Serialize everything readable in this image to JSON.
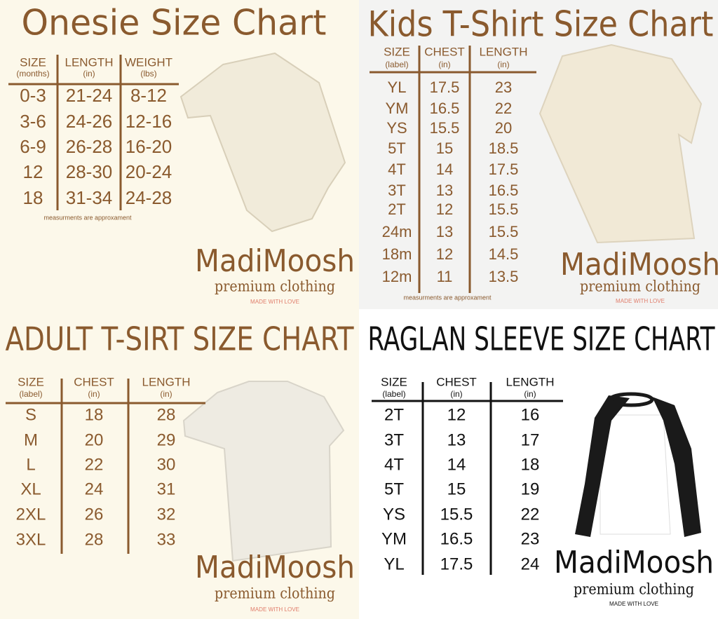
{
  "panels": [
    {
      "title": "Onesie Size Chart",
      "columns": [
        {
          "label": "SIZE",
          "unit": "(months)"
        },
        {
          "label": "LENGTH",
          "unit": "(in)"
        },
        {
          "label": "WEIGHT",
          "unit": "(lbs)"
        }
      ],
      "rows": [
        [
          "0-3",
          "21-24",
          "8-12"
        ],
        [
          "3-6",
          "24-26",
          "12-16"
        ],
        [
          "6-9",
          "26-28",
          "16-20"
        ],
        [
          "12",
          "28-30",
          "20-24"
        ],
        [
          "18",
          "31-34",
          "24-28"
        ]
      ],
      "note": "measurments are approxament",
      "brand": {
        "name": "MadiMoosh",
        "tagline": "premium clothing",
        "motto": "MADE WITH LOVE"
      }
    },
    {
      "title": "Kids T-Shirt Size Chart",
      "columns": [
        {
          "label": "SIZE",
          "unit": "(label)"
        },
        {
          "label": "CHEST",
          "unit": "(in)"
        },
        {
          "label": "LENGTH",
          "unit": "(in)"
        }
      ],
      "rows": [
        [
          "YL",
          "17.5",
          "23"
        ],
        [
          "YM",
          "16.5",
          "22"
        ],
        [
          "YS",
          "15.5",
          "20"
        ],
        [
          "5T",
          "15",
          "18.5"
        ],
        [
          "4T",
          "14",
          "17.5"
        ],
        [
          "3T",
          "13",
          "16.5"
        ],
        [
          "2T",
          "12",
          "15.5"
        ],
        [
          "24m",
          "13",
          "15.5"
        ],
        [
          "18m",
          "12",
          "14.5"
        ],
        [
          "12m",
          "11",
          "13.5"
        ]
      ],
      "note": "measurments are approxament",
      "brand": {
        "name": "MadiMoosh",
        "tagline": "premium clothing",
        "motto": "MADE WITH LOVE"
      }
    },
    {
      "title": "ADULT T-SIRT SIZE CHART",
      "columns": [
        {
          "label": "SIZE",
          "unit": "(label)"
        },
        {
          "label": "CHEST",
          "unit": "(in)"
        },
        {
          "label": "LENGTH",
          "unit": "(in)"
        }
      ],
      "rows": [
        [
          "S",
          "18",
          "28"
        ],
        [
          "M",
          "20",
          "29"
        ],
        [
          "L",
          "22",
          "30"
        ],
        [
          "XL",
          "24",
          "31"
        ],
        [
          "2XL",
          "26",
          "32"
        ],
        [
          "3XL",
          "28",
          "33"
        ]
      ],
      "brand": {
        "name": "MadiMoosh",
        "tagline": "premium clothing",
        "motto": "MADE WITH LOVE"
      }
    },
    {
      "title": "RAGLAN SLEEVE SIZE CHART",
      "columns": [
        {
          "label": "SIZE",
          "unit": "(label)"
        },
        {
          "label": "CHEST",
          "unit": "(in)"
        },
        {
          "label": "LENGTH",
          "unit": "(in)"
        }
      ],
      "rows": [
        [
          "2T",
          "12",
          "16"
        ],
        [
          "3T",
          "13",
          "17"
        ],
        [
          "4T",
          "14",
          "18"
        ],
        [
          "5T",
          "15",
          "19"
        ],
        [
          "YS",
          "15.5",
          "22"
        ],
        [
          "YM",
          "16.5",
          "23"
        ],
        [
          "YL",
          "17.5",
          "24"
        ]
      ],
      "brand": {
        "name": "MadiMoosh",
        "tagline": "premium clothing",
        "motto": "MADE WITH LOVE"
      }
    }
  ]
}
